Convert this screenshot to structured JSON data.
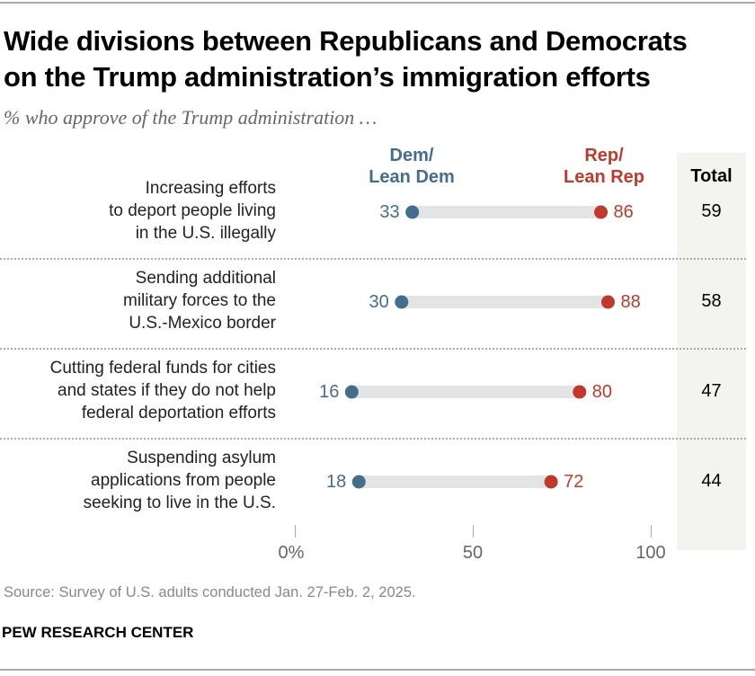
{
  "title": "Wide divisions between Republicans and Democrats on the Trump administration’s immigration efforts",
  "subtitle": "% who approve of the Trump administration …",
  "source": "Source: Survey of U.S. adults conducted Jan. 27-Feb. 2, 2025.",
  "brand": "PEW RESEARCH CENTER",
  "chart_data": {
    "type": "dot",
    "title": "Wide divisions between Republicans and Democrats on the Trump administration’s immigration efforts",
    "categories": [
      "Increasing efforts to deport people living in the U.S. illegally",
      "Sending additional military forces to the U.S.-Mexico border",
      "Cutting federal funds for cities and states if they do not help federal deportation efforts",
      "Suspending asylum applications from people seeking to live in the U.S."
    ],
    "series": [
      {
        "name": "Dem/ Lean Dem",
        "values": [
          33,
          30,
          16,
          18
        ],
        "color": "#436f8c"
      },
      {
        "name": "Rep/ Lean Rep",
        "values": [
          86,
          88,
          80,
          72
        ],
        "color": "#c0392b"
      }
    ],
    "total": {
      "name": "Total",
      "values": [
        59,
        58,
        47,
        44
      ]
    },
    "xlim": [
      0,
      100
    ],
    "xticks": [
      "0%",
      "50",
      "100"
    ],
    "grid": false,
    "legend": "top"
  }
}
